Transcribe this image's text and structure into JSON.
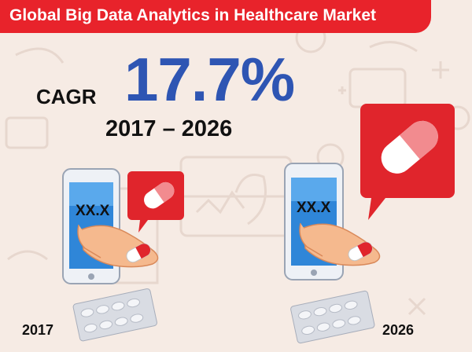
{
  "banner": {
    "title": "Global Big Data Analytics in Healthcare Market",
    "color": "#e8232b"
  },
  "cagr": {
    "label": "CAGR",
    "value": "17.7%",
    "period": "2017 – 2026",
    "value_color": "#2e55b3"
  },
  "phones": [
    {
      "screen_value": "XX.X",
      "year": "2017"
    },
    {
      "screen_value": "XX.X",
      "year": "2026"
    }
  ],
  "colors": {
    "background": "#f6ebe4",
    "phone_screen": "#2f86d8",
    "bubble": "#e0252c",
    "hand": "#f5b98e",
    "blister": "#d9dce3"
  }
}
